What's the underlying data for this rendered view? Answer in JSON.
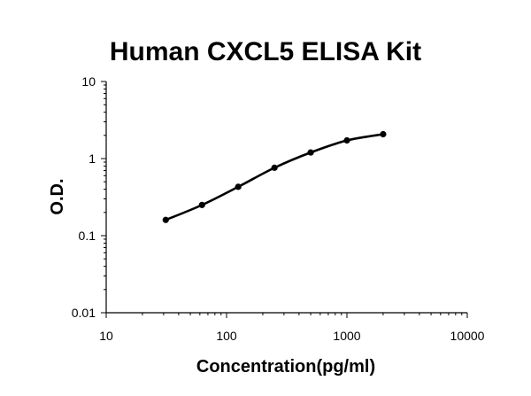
{
  "chart_data": {
    "type": "line",
    "title": "Human CXCL5 ELISA Kit",
    "xlabel": "Concentration(pg/ml)",
    "ylabel": "O.D.",
    "x_scale": "log",
    "y_scale": "log",
    "xlim": [
      10,
      10000
    ],
    "ylim": [
      0.01,
      10
    ],
    "x_ticks": [
      "10",
      "100",
      "1000",
      "10000"
    ],
    "y_ticks": [
      "0.01",
      "0.1",
      "1",
      "10"
    ],
    "grid": false,
    "legend": "none",
    "series": [
      {
        "x": [
          31.25,
          62.5,
          125,
          250,
          500,
          1000,
          2000
        ],
        "y": [
          0.16,
          0.25,
          0.43,
          0.76,
          1.2,
          1.72,
          2.07
        ]
      }
    ],
    "colors": {
      "line": "#000000",
      "marker": "#000000",
      "axis": "#000000"
    }
  }
}
